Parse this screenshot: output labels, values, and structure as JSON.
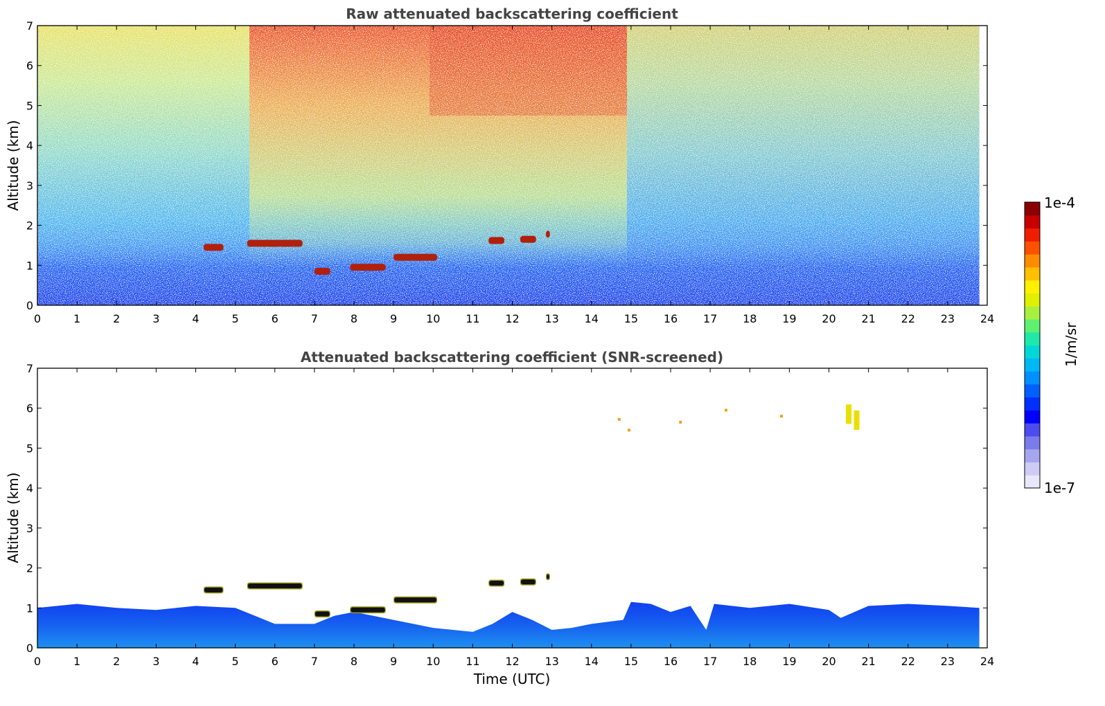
{
  "chart_data": [
    {
      "type": "heatmap",
      "title": "Raw attenuated backscattering coefficient",
      "ylabel": "Altitude (km)",
      "xlabel": "",
      "xlim": [
        0,
        24
      ],
      "ylim": [
        0,
        7
      ],
      "xticks": [
        "0",
        "1",
        "2",
        "3",
        "4",
        "5",
        "6",
        "7",
        "8",
        "9",
        "10",
        "11",
        "12",
        "13",
        "14",
        "15",
        "16",
        "17",
        "18",
        "19",
        "20",
        "21",
        "22",
        "23",
        "24"
      ],
      "yticks": [
        "0",
        "1",
        "2",
        "3",
        "4",
        "5",
        "6",
        "7"
      ],
      "data_end_time": 23.8,
      "cloud_layers": [
        {
          "t0": 4.2,
          "t1": 4.7,
          "alt": 1.45
        },
        {
          "t0": 5.3,
          "t1": 6.7,
          "alt": 1.55
        },
        {
          "t0": 7.0,
          "t1": 7.4,
          "alt": 0.85
        },
        {
          "t0": 7.9,
          "t1": 8.8,
          "alt": 0.95
        },
        {
          "t0": 9.0,
          "t1": 10.1,
          "alt": 1.2
        },
        {
          "t0": 11.4,
          "t1": 11.8,
          "alt": 1.62
        },
        {
          "t0": 12.2,
          "t1": 12.6,
          "alt": 1.65
        },
        {
          "t0": 12.85,
          "t1": 12.95,
          "alt": 1.78
        }
      ]
    },
    {
      "type": "heatmap",
      "title": "Attenuated backscattering coefficient (SNR-screened)",
      "ylabel": "Altitude (km)",
      "xlabel": "Time (UTC)",
      "xlim": [
        0,
        24
      ],
      "ylim": [
        0,
        7
      ],
      "xticks": [
        "0",
        "1",
        "2",
        "3",
        "4",
        "5",
        "6",
        "7",
        "8",
        "9",
        "10",
        "11",
        "12",
        "13",
        "14",
        "15",
        "16",
        "17",
        "18",
        "19",
        "20",
        "21",
        "22",
        "23",
        "24"
      ],
      "yticks": [
        "0",
        "1",
        "2",
        "3",
        "4",
        "5",
        "6",
        "7"
      ],
      "boundary_layer_top": [
        [
          0,
          1.0
        ],
        [
          1,
          1.1
        ],
        [
          2,
          1.0
        ],
        [
          3,
          0.95
        ],
        [
          4,
          1.05
        ],
        [
          5,
          1.0
        ],
        [
          5.5,
          0.8
        ],
        [
          6,
          0.6
        ],
        [
          7,
          0.6
        ],
        [
          7.5,
          0.8
        ],
        [
          8,
          0.9
        ],
        [
          9,
          0.7
        ],
        [
          10,
          0.5
        ],
        [
          10.5,
          0.45
        ],
        [
          11,
          0.4
        ],
        [
          11.5,
          0.6
        ],
        [
          12,
          0.9
        ],
        [
          12.5,
          0.7
        ],
        [
          13,
          0.45
        ],
        [
          13.5,
          0.5
        ],
        [
          14,
          0.6
        ],
        [
          14.8,
          0.7
        ],
        [
          15,
          1.15
        ],
        [
          15.5,
          1.1
        ],
        [
          16,
          0.9
        ],
        [
          16.5,
          1.05
        ],
        [
          16.9,
          0.45
        ],
        [
          17.1,
          1.1
        ],
        [
          18,
          1.0
        ],
        [
          19,
          1.1
        ],
        [
          20,
          0.95
        ],
        [
          20.3,
          0.75
        ],
        [
          21,
          1.05
        ],
        [
          22,
          1.1
        ],
        [
          23,
          1.05
        ],
        [
          23.8,
          1.0
        ]
      ],
      "upper_features": [
        {
          "t": 20.5,
          "alt": 5.85
        },
        {
          "t": 20.7,
          "alt": 5.7
        },
        {
          "t": 14.95,
          "alt": 5.45
        },
        {
          "t": 14.7,
          "alt": 5.72
        },
        {
          "t": 16.25,
          "alt": 5.65
        },
        {
          "t": 18.8,
          "alt": 5.8
        },
        {
          "t": 17.4,
          "alt": 5.95
        }
      ]
    }
  ],
  "colorbar": {
    "max_label": "1e-4",
    "min_label": "1e-7",
    "unit_label": "1/m/sr",
    "colors": [
      "#e8e8fa",
      "#ccccf5",
      "#a6a6ef",
      "#7b7bec",
      "#4c4cf0",
      "#0000ff",
      "#0030ff",
      "#0060ff",
      "#0090ff",
      "#00b8f5",
      "#00d8d8",
      "#20e8a8",
      "#60f070",
      "#a8f040",
      "#e0f000",
      "#fff000",
      "#ffc000",
      "#ff8c00",
      "#ff5000",
      "#f01e00",
      "#c80000",
      "#8b0000"
    ]
  }
}
